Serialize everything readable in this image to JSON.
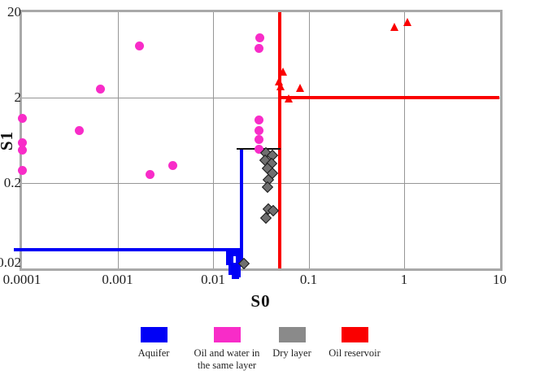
{
  "chart_data": {
    "type": "scatter",
    "title": "",
    "xlabel": "S0",
    "ylabel": "S1",
    "x_scale": "log",
    "y_scale": "log",
    "xlim": [
      0.0001,
      10
    ],
    "ylim": [
      0.02,
      20
    ],
    "x_ticks": [
      "0.0001",
      "0.001",
      "0.01",
      "0.1",
      "1",
      "10"
    ],
    "y_ticks": [
      "20",
      "2",
      "0.2",
      "0.02"
    ],
    "grid": true,
    "legend_position": "bottom",
    "series": [
      {
        "name": "Aquifer",
        "marker": "square",
        "color": "#0000f6",
        "points": [
          [
            0.015,
            0.031
          ],
          [
            0.017,
            0.0305
          ],
          [
            0.019,
            0.029
          ],
          [
            0.015,
            0.027
          ],
          [
            0.019,
            0.026
          ],
          [
            0.015,
            0.024
          ],
          [
            0.019,
            0.023
          ],
          [
            0.016,
            0.021
          ],
          [
            0.018,
            0.02
          ],
          [
            0.016,
            0.0185
          ],
          [
            0.018,
            0.0175
          ],
          [
            0.017,
            0.0165
          ]
        ]
      },
      {
        "name": "Oil and water in the same layer",
        "marker": "circle",
        "color": "#f82cc8",
        "points": [
          [
            0.0001,
            1.15
          ],
          [
            0.0001,
            0.59
          ],
          [
            0.0001,
            0.49
          ],
          [
            0.0001,
            0.28
          ],
          [
            0.0004,
            0.83
          ],
          [
            0.00066,
            2.5
          ],
          [
            0.0017,
            8
          ],
          [
            0.0022,
            0.25
          ],
          [
            0.0038,
            0.32
          ],
          [
            0.031,
            10
          ],
          [
            0.03,
            7.5
          ],
          [
            0.03,
            1.1
          ],
          [
            0.03,
            0.83
          ],
          [
            0.03,
            0.64
          ],
          [
            0.03,
            0.5
          ]
        ]
      },
      {
        "name": "Dry layer",
        "marker": "diamond",
        "color": "#6f6f6f",
        "points": [
          [
            0.036,
            0.45
          ],
          [
            0.042,
            0.42
          ],
          [
            0.035,
            0.37
          ],
          [
            0.041,
            0.34
          ],
          [
            0.037,
            0.3
          ],
          [
            0.042,
            0.26
          ],
          [
            0.038,
            0.22
          ],
          [
            0.037,
            0.18
          ],
          [
            0.038,
            0.1
          ],
          [
            0.043,
            0.095
          ],
          [
            0.036,
            0.078
          ],
          [
            0.021,
            0.023
          ]
        ]
      },
      {
        "name": "Oil reservoir",
        "marker": "triangle",
        "color": "#fa0000",
        "points": [
          [
            0.055,
            4.0
          ],
          [
            0.049,
            3.1
          ],
          [
            0.051,
            2.7
          ],
          [
            0.082,
            2.6
          ],
          [
            0.062,
            1.95
          ],
          [
            0.8,
            13.5
          ],
          [
            1.1,
            15.5
          ]
        ]
      }
    ],
    "boundary_lines": [
      {
        "name": "red-vertical-cutoff",
        "orientation": "vertical",
        "x": 0.05,
        "y_from": 0.02,
        "y_to": 20,
        "color": "#fa0000",
        "thickness": 4
      },
      {
        "name": "red-horizontal-cutoff",
        "orientation": "horizontal",
        "y": 2,
        "x_from": 0.05,
        "x_to": 10,
        "color": "#fa0000",
        "thickness": 4
      },
      {
        "name": "blue-horizontal-cutoff",
        "orientation": "horizontal",
        "y": 0.033,
        "x_from": 8.2e-05,
        "x_to": 0.02,
        "color": "#0000f6",
        "thickness": 4
      },
      {
        "name": "blue-vertical-cutoff",
        "orientation": "vertical",
        "x": 0.02,
        "y_from": 0.024,
        "y_to": 0.5,
        "color": "#0000f6",
        "thickness": 4
      },
      {
        "name": "black-horizontal-cutoff",
        "orientation": "horizontal",
        "y": 0.5,
        "x_from": 0.0175,
        "x_to": 0.051,
        "color": "#111111",
        "thickness": 2
      }
    ]
  },
  "legend": {
    "items": [
      {
        "label": "Aquifer",
        "color": "#0000f6"
      },
      {
        "label": "Oil and water in the same layer",
        "color": "#f82cc8"
      },
      {
        "label": "Dry layer",
        "color": "#8a8a8a"
      },
      {
        "label": "Oil reservoir",
        "color": "#fa0000"
      }
    ]
  }
}
